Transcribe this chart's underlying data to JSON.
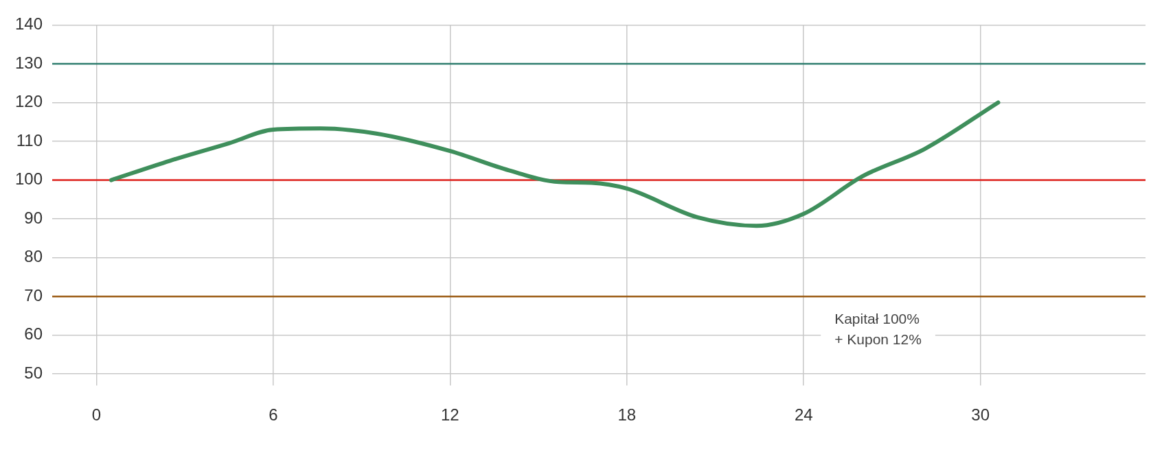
{
  "chart_data": {
    "type": "line",
    "series": [
      {
        "color": "#3f8f5c",
        "x": [
          0.5,
          2.5,
          4.5,
          6,
          7.6,
          9.5,
          12,
          14,
          15.7,
          16.8,
          18,
          20.4,
          22.4,
          24,
          26,
          28.1,
          30.6
        ],
        "values": [
          100,
          105,
          109.5,
          113,
          113.3,
          112,
          107.5,
          102.5,
          99.5,
          99.3,
          97.8,
          90.4,
          88.2,
          91.3,
          101,
          108,
          120
        ]
      }
    ],
    "xlim": [
      -1.5,
      35.6
    ],
    "xticks": [
      0,
      6,
      12,
      18,
      24,
      30
    ],
    "ylim": [
      47,
      140
    ],
    "yticks": [
      50,
      60,
      70,
      80,
      90,
      100,
      110,
      120,
      130,
      140
    ],
    "grid": true,
    "marker": "none",
    "line_style": "solid",
    "legend": false,
    "ref_lines": [
      {
        "axis": "y",
        "value": 130,
        "color": "#2e7d6e"
      },
      {
        "axis": "y",
        "value": 100,
        "color": "#e0201b"
      },
      {
        "axis": "y",
        "value": 70,
        "color": "#9a5a12"
      }
    ],
    "annotations": [
      "Kapitał 100%\n+ Kupon 12%"
    ]
  }
}
